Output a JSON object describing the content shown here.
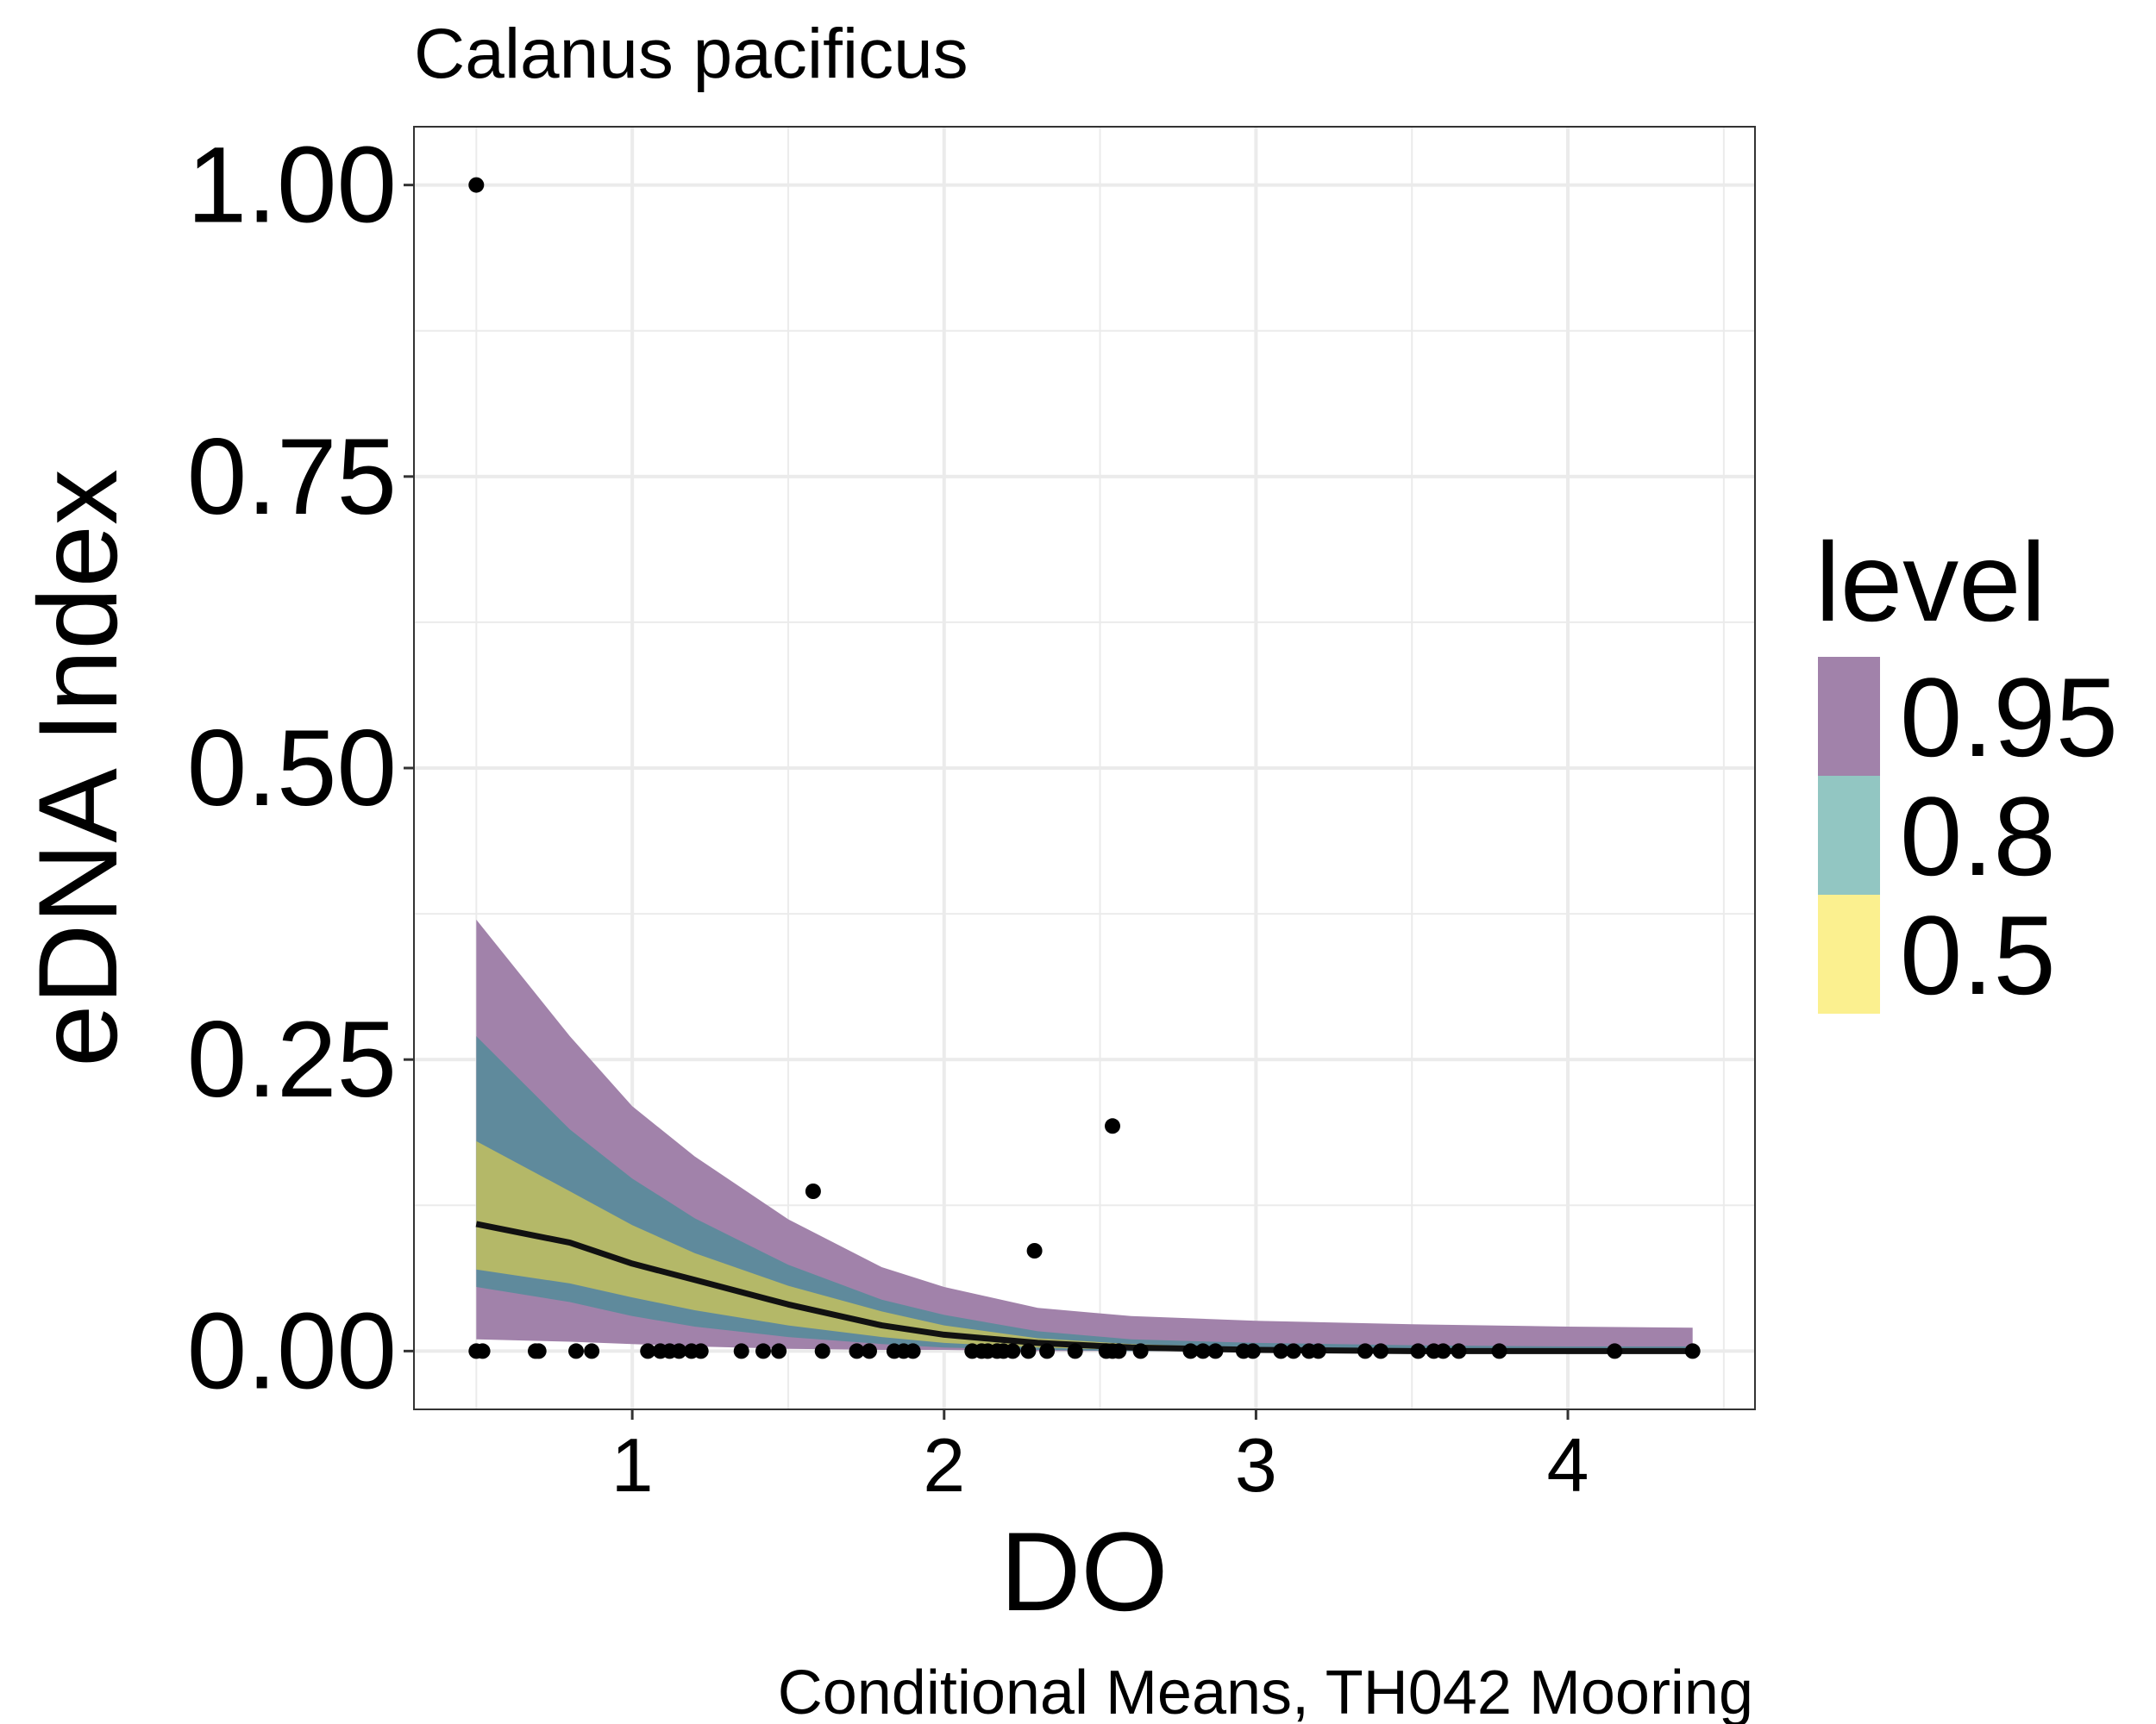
{
  "chart_data": {
    "type": "line",
    "title": "Calanus pacificus",
    "caption": "Conditional Means, TH042 Mooring",
    "xlabel": "DO",
    "ylabel": "eDNA Index",
    "xlim": [
      0.3,
      4.6
    ],
    "ylim": [
      -0.05,
      1.05
    ],
    "x_ticks": [
      1,
      2,
      3,
      4
    ],
    "x_tick_labels": [
      "1",
      "2",
      "3",
      "4"
    ],
    "y_ticks": [
      0,
      0.25,
      0.5,
      0.75,
      1
    ],
    "y_tick_labels": [
      "0.00",
      "0.25",
      "0.50",
      "0.75",
      "1.00"
    ],
    "grid": true,
    "legend": {
      "title": "level",
      "placement": "right",
      "entries": [
        {
          "label": "0.95",
          "color": "#a182aa"
        },
        {
          "label": "0.8",
          "color": "#92c6c2"
        },
        {
          "label": "0.5",
          "color": "#fbf08f"
        }
      ]
    },
    "colors": {
      "band_95": "#a182aa",
      "band_80": "#5f8a9c",
      "band_50": "#b4b868",
      "line": "#111111",
      "points": "#000000",
      "grid": "#ebebeb",
      "panel_border": "#333333"
    },
    "ribbons": [
      {
        "level": "0.95",
        "x": [
          0.5,
          0.8,
          1.0,
          1.2,
          1.5,
          1.8,
          2.0,
          2.3,
          2.6,
          3.0,
          3.5,
          4.0,
          4.4
        ],
        "lower": [
          0.01,
          0.008,
          0.006,
          0.004,
          0.002,
          0.001,
          0.001,
          0.0,
          0.0,
          0.0,
          0.0,
          0.0,
          0.0
        ],
        "upper": [
          0.37,
          0.27,
          0.21,
          0.167,
          0.113,
          0.072,
          0.055,
          0.037,
          0.03,
          0.026,
          0.023,
          0.021,
          0.02
        ]
      },
      {
        "level": "0.8",
        "x": [
          0.5,
          0.8,
          1.0,
          1.2,
          1.5,
          1.8,
          2.0,
          2.3,
          2.6,
          3.0,
          3.5,
          4.0,
          4.4
        ],
        "lower": [
          0.055,
          0.042,
          0.03,
          0.021,
          0.012,
          0.006,
          0.003,
          0.001,
          0.0,
          0.0,
          0.0,
          0.0,
          0.0
        ],
        "upper": [
          0.27,
          0.19,
          0.148,
          0.114,
          0.074,
          0.044,
          0.031,
          0.017,
          0.01,
          0.007,
          0.005,
          0.004,
          0.004
        ]
      },
      {
        "level": "0.5",
        "x": [
          0.5,
          0.8,
          1.0,
          1.2,
          1.5,
          1.8,
          2.0,
          2.3,
          2.6,
          3.0,
          3.5,
          4.0,
          4.4
        ],
        "lower": [
          0.07,
          0.058,
          0.046,
          0.035,
          0.022,
          0.012,
          0.007,
          0.003,
          0.001,
          0.0,
          0.0,
          0.0,
          0.0
        ],
        "upper": [
          0.18,
          0.137,
          0.108,
          0.084,
          0.056,
          0.034,
          0.022,
          0.011,
          0.006,
          0.003,
          0.002,
          0.002,
          0.002
        ]
      }
    ],
    "mean_line": {
      "x": [
        0.5,
        0.8,
        1.0,
        1.2,
        1.5,
        1.8,
        2.0,
        2.3,
        2.6,
        3.0,
        3.5,
        4.0,
        4.4
      ],
      "y": [
        0.109,
        0.093,
        0.075,
        0.061,
        0.04,
        0.022,
        0.014,
        0.007,
        0.003,
        0.001,
        0.0,
        0.0,
        0.0
      ]
    },
    "points": {
      "x": [
        0.5,
        0.5,
        0.52,
        0.69,
        0.7,
        0.82,
        0.87,
        1.05,
        1.09,
        1.12,
        1.15,
        1.19,
        1.22,
        1.35,
        1.42,
        1.47,
        1.58,
        1.61,
        1.72,
        1.76,
        1.84,
        1.87,
        1.9,
        2.09,
        2.12,
        2.14,
        2.17,
        2.19,
        2.22,
        2.27,
        2.29,
        2.33,
        2.42,
        2.52,
        2.54,
        2.54,
        2.56,
        2.63,
        2.79,
        2.83,
        2.87,
        2.96,
        2.99,
        3.08,
        3.12,
        3.17,
        3.2,
        3.35,
        3.4,
        3.52,
        3.57,
        3.6,
        3.65,
        3.78,
        4.15,
        4.4
      ],
      "y": [
        1.0,
        0.0,
        0.0,
        0.0,
        0.0,
        0.0,
        0.0,
        0.0,
        0.0,
        0.0,
        0.0,
        0.0,
        0.0,
        0.0,
        0.0,
        0.0,
        0.137,
        0.0,
        0.0,
        0.0,
        0.0,
        0.0,
        0.0,
        0.0,
        0.0,
        0.0,
        0.0,
        0.0,
        0.0,
        0.0,
        0.086,
        0.0,
        0.0,
        0.0,
        0.193,
        0.0,
        0.0,
        0.0,
        0.0,
        0.0,
        0.0,
        0.0,
        0.0,
        0.0,
        0.0,
        0.0,
        0.0,
        0.0,
        0.0,
        0.0,
        0.0,
        0.0,
        0.0,
        0.0,
        0.0,
        0.0
      ]
    }
  }
}
